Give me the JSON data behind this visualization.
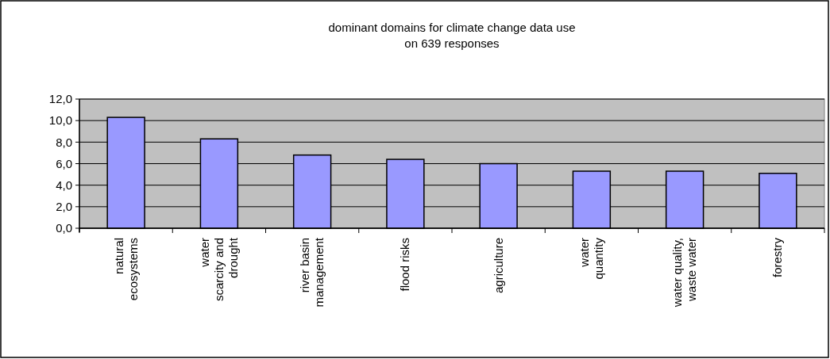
{
  "chart_data": {
    "type": "bar",
    "title": "dominant domains for climate change data use\non 639 responses",
    "categories": [
      "natural\necosystems",
      "water\nscarcity and\ndrought",
      "river basin\nmanagement",
      "flood risks",
      "agriculture",
      "water\nquantity",
      "water quality,\nwaste water",
      "forestry"
    ],
    "values": [
      10.3,
      8.3,
      6.8,
      6.4,
      6.0,
      5.3,
      5.3,
      5.1
    ],
    "color": "#9999ff",
    "ylim": [
      0,
      12
    ],
    "yticks": [
      {
        "value": 0,
        "label": "0,0"
      },
      {
        "value": 2,
        "label": "2,0"
      },
      {
        "value": 4,
        "label": "4,0"
      },
      {
        "value": 6,
        "label": "6,0"
      },
      {
        "value": 8,
        "label": "8,0"
      },
      {
        "value": 10,
        "label": "10,0"
      },
      {
        "value": 12,
        "label": "12,0"
      }
    ],
    "grid": "y"
  }
}
